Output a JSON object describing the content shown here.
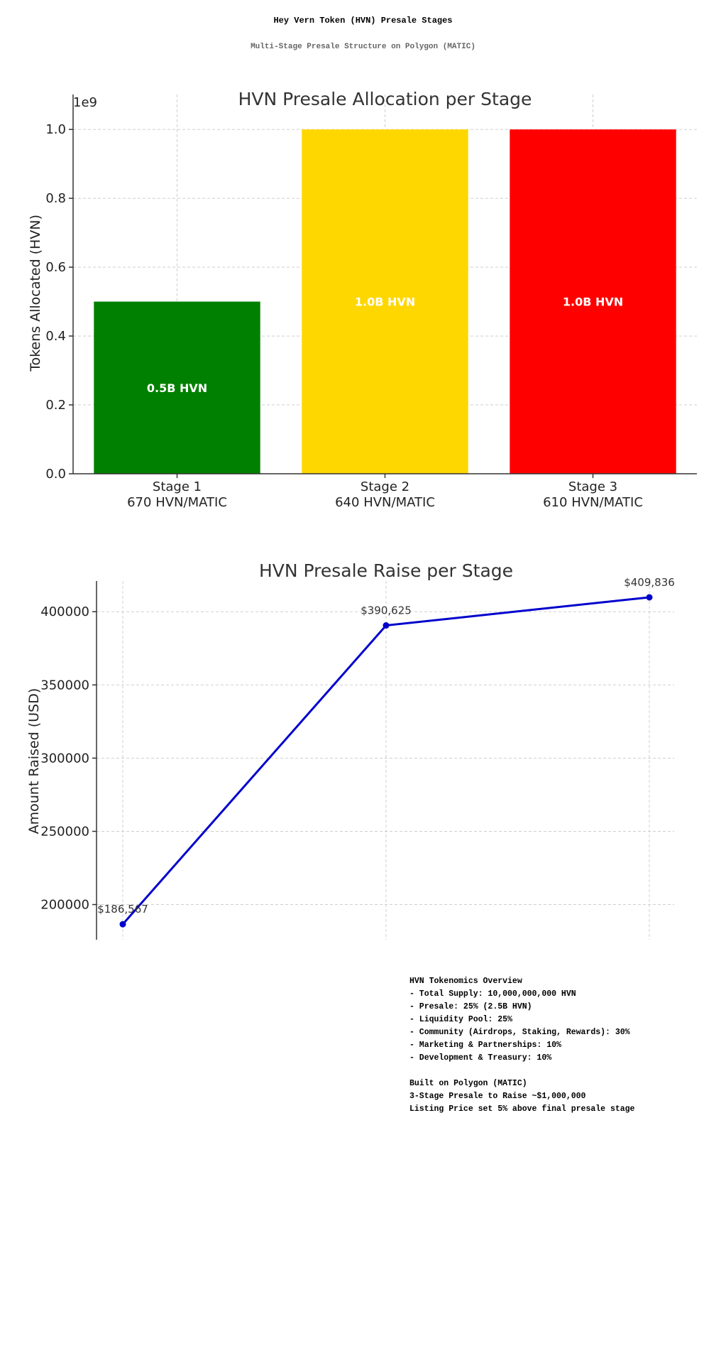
{
  "header": {
    "title": "Hey Vern Token (HVN) Presale Stages",
    "subtitle": "Multi-Stage Presale Structure on Polygon (MATIC)"
  },
  "chart_data": [
    {
      "type": "bar",
      "title": "HVN Presale Allocation per Stage",
      "xlabel": "",
      "ylabel": "Tokens Allocated (HVN)",
      "axis_multiplier": "1e9",
      "categories": [
        "Stage 1\n670 HVN/MATIC",
        "Stage 2\n640 HVN/MATIC",
        "Stage 3\n610 HVN/MATIC"
      ],
      "values": [
        500000000,
        1000000000,
        1000000000
      ],
      "colors": [
        "#008000",
        "#FFD700",
        "#FF0000"
      ],
      "data_labels": [
        "0.5B HVN",
        "1.0B HVN",
        "1.0B HVN"
      ],
      "ylim": [
        0,
        1050000000
      ],
      "y_ticks": [
        "0.0",
        "0.2",
        "0.4",
        "0.6",
        "0.8",
        "1.0"
      ],
      "grid": true
    },
    {
      "type": "line",
      "title": "HVN Presale Raise per Stage",
      "xlabel": "",
      "ylabel": "Amount Raised (USD)",
      "x": [
        1,
        2,
        3
      ],
      "series": [
        {
          "values": [
            186567,
            390625,
            409836
          ],
          "color": "#0000CD"
        }
      ],
      "data_labels": [
        "$186,567",
        "$390,625",
        "$409,836"
      ],
      "ylim": [
        176000,
        420000
      ],
      "y_ticks": [
        "200000",
        "250000",
        "300000",
        "350000",
        "400000"
      ],
      "grid": true
    }
  ],
  "notes": [
    "HVN Tokenomics Overview",
    "- Total Supply: 10,000,000,000 HVN",
    "- Presale: 25% (2.5B HVN)",
    "- Liquidity Pool: 25%",
    "- Community (Airdrops, Staking, Rewards): 30%",
    "- Marketing & Partnerships: 10%",
    "- Development & Treasury: 10%",
    "",
    "Built on Polygon (MATIC)",
    "3-Stage Presale to Raise ~$1,000,000",
    "Listing Price set 5% above final presale stage"
  ]
}
